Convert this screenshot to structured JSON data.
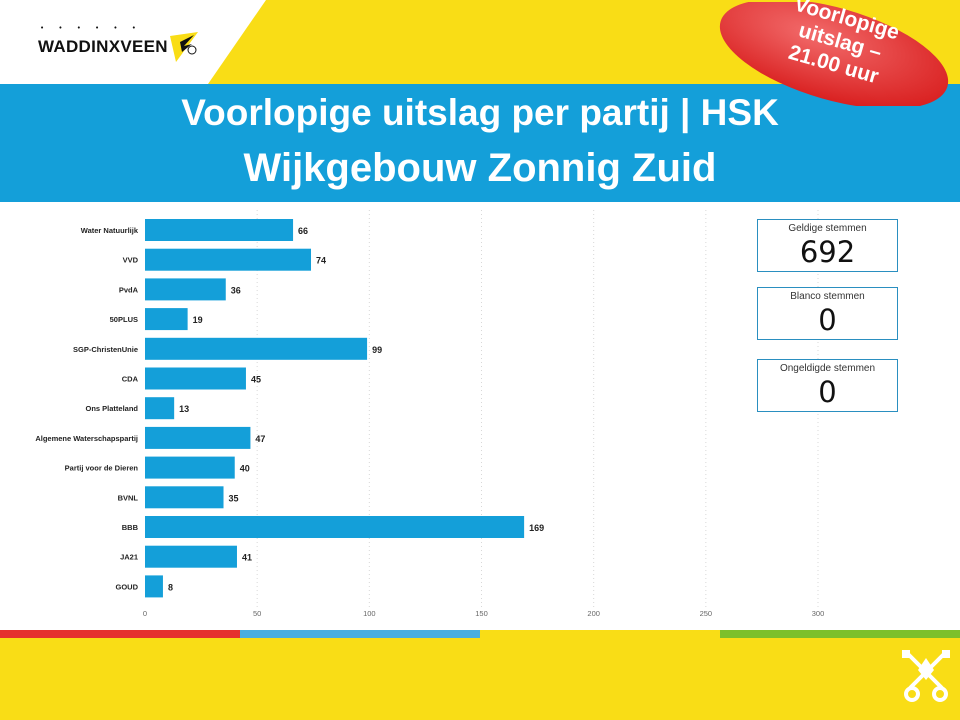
{
  "brand": {
    "logo_text": "WADDINXVEEN",
    "colors": {
      "yellow": "#f9dd16",
      "blue": "#149fd9",
      "red": "#e5322e",
      "green": "#7cc02b",
      "bar": "#149fd9"
    }
  },
  "badge": {
    "line1": "Voorlopige",
    "line2": "uitslag –",
    "line3": "21.00 uur"
  },
  "header": {
    "title_line1": "Voorlopige uitslag per partij | HSK",
    "title_line2": "Wijkgebouw Zonnig Zuid"
  },
  "kpis": [
    {
      "label": "Geldige stemmen",
      "value": "692"
    },
    {
      "label": "Blanco stemmen",
      "value": "0"
    },
    {
      "label": "Ongeldigde stemmen",
      "value": "0"
    }
  ],
  "chart_data": {
    "type": "bar",
    "orientation": "horizontal",
    "categories": [
      "Water Natuurlijk",
      "VVD",
      "PvdA",
      "50PLUS",
      "SGP-ChristenUnie",
      "CDA",
      "Ons Platteland",
      "Algemene Waterschapspartij",
      "Partij voor de Dieren",
      "BVNL",
      "BBB",
      "JA21",
      "GOUD"
    ],
    "values": [
      66,
      74,
      36,
      19,
      99,
      45,
      13,
      47,
      40,
      35,
      169,
      41,
      8
    ],
    "xlim": [
      0,
      300
    ],
    "xticks": [
      0,
      50,
      100,
      150,
      200,
      250,
      300
    ],
    "grid": true,
    "data_labels": true
  },
  "icons": {
    "logo_mark": "bird-wing-icon",
    "footer_emblem": "crossed-keys-icon"
  }
}
